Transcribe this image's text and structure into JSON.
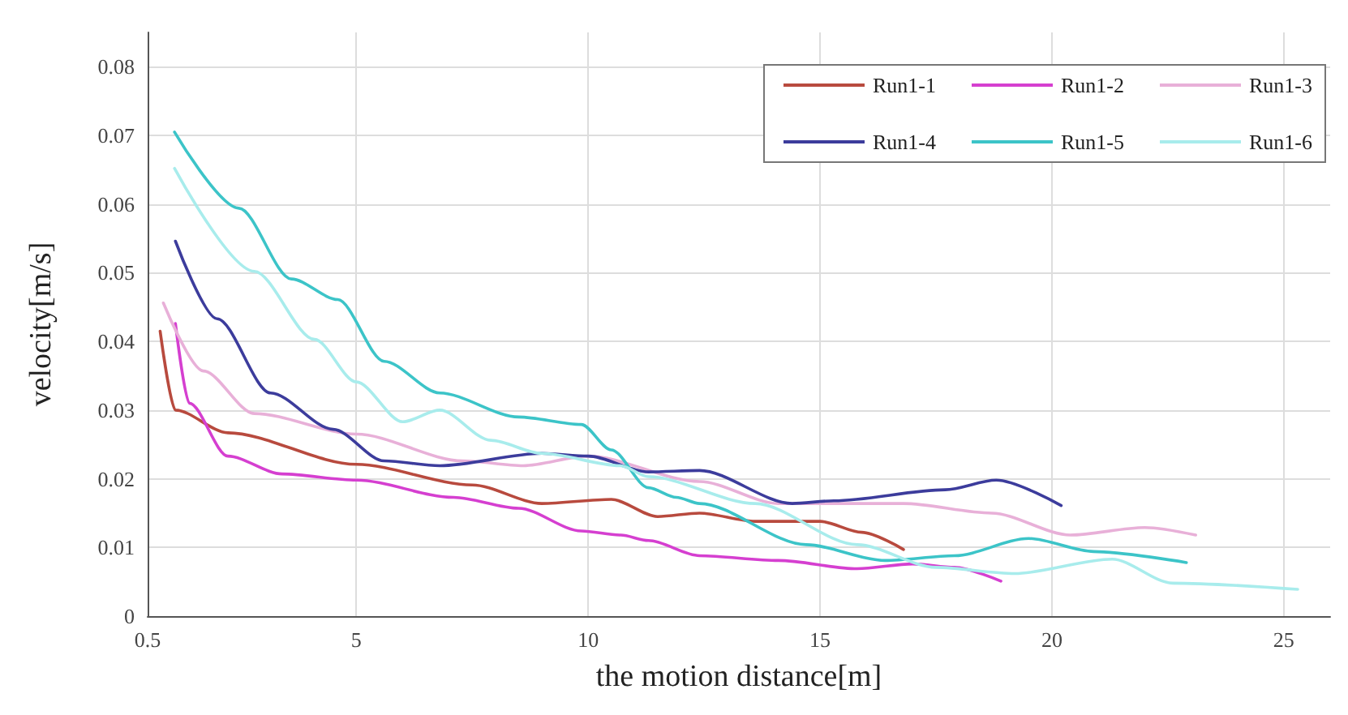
{
  "chart_data": {
    "type": "line",
    "xlabel": "the motion distance[m]",
    "ylabel": "velocity[m/s]",
    "xlim": [
      0.5,
      26
    ],
    "xticks": [
      0.5,
      5,
      10,
      15,
      20,
      25
    ],
    "ylim": [
      0,
      0.085
    ],
    "yticks": [
      0,
      0.01,
      0.02,
      0.03,
      0.04,
      0.05,
      0.06,
      0.07,
      0.08
    ],
    "grid": true,
    "legend": "top right",
    "marker": "none",
    "line_style": "solid",
    "series": [
      {
        "name": "Run1-1",
        "color": "#b84a3e",
        "x": [
          0.77,
          1.1,
          2.23,
          5,
          7.5,
          9,
          10.5,
          11.5,
          12.4,
          13.6,
          15,
          15.9,
          16.8
        ],
        "values": [
          0.0415,
          0.03,
          0.0267,
          0.0221,
          0.0191,
          0.0164,
          0.017,
          0.0145,
          0.015,
          0.0138,
          0.0138,
          0.0122,
          0.0097
        ]
      },
      {
        "name": "Run1-2",
        "color": "#d53fd0",
        "x": [
          1.1,
          1.4,
          2.23,
          3.4,
          5,
          7.1,
          8.5,
          9.85,
          10.7,
          11.3,
          12.4,
          14.1,
          15.8,
          17,
          17.9,
          18.9
        ],
        "values": [
          0.0426,
          0.031,
          0.0233,
          0.0207,
          0.0198,
          0.0173,
          0.0157,
          0.0124,
          0.0118,
          0.011,
          0.0088,
          0.0081,
          0.0069,
          0.0076,
          0.0071,
          0.0051
        ]
      },
      {
        "name": "Run1-3",
        "color": "#e8b0d8",
        "x": [
          0.84,
          1.7,
          2.8,
          5,
          7.3,
          8.6,
          10,
          12.4,
          14.1,
          16.8,
          18.7,
          20.4,
          22,
          23.1
        ],
        "values": [
          0.0456,
          0.0357,
          0.0295,
          0.0265,
          0.0226,
          0.0219,
          0.0233,
          0.0196,
          0.0164,
          0.0164,
          0.015,
          0.0118,
          0.0129,
          0.0118
        ]
      },
      {
        "name": "Run1-4",
        "color": "#3c3c9c",
        "x": [
          1.1,
          2,
          3.15,
          4.5,
          5.6,
          6.8,
          9,
          10,
          11.3,
          12.4,
          14.4,
          15.3,
          17.7,
          18.8,
          20.2
        ],
        "values": [
          0.0546,
          0.0433,
          0.0325,
          0.0272,
          0.0226,
          0.0219,
          0.0237,
          0.0233,
          0.021,
          0.0212,
          0.0164,
          0.0168,
          0.0184,
          0.0198,
          0.0161
        ]
      },
      {
        "name": "Run1-5",
        "color": "#3cc4c8",
        "x": [
          1.08,
          2.47,
          3.6,
          4.6,
          5.6,
          6.8,
          8.5,
          9.85,
          10.5,
          11.3,
          11.9,
          12.4,
          14.7,
          16.4,
          17.9,
          19.5,
          20.9,
          22.9
        ],
        "values": [
          0.0705,
          0.0594,
          0.0491,
          0.0461,
          0.0371,
          0.0325,
          0.029,
          0.0279,
          0.0242,
          0.0187,
          0.0173,
          0.0164,
          0.0104,
          0.0081,
          0.0088,
          0.0113,
          0.0094,
          0.0078
        ]
      },
      {
        "name": "Run1-6",
        "color": "#a8ecec",
        "x": [
          1.08,
          2.8,
          4.1,
          5,
          6,
          6.8,
          7.9,
          9,
          10.7,
          11.3,
          13.6,
          15.8,
          17.5,
          19.2,
          21.3,
          22.6,
          25.3
        ],
        "values": [
          0.0652,
          0.0502,
          0.0403,
          0.0341,
          0.0283,
          0.03,
          0.0256,
          0.0237,
          0.0219,
          0.0203,
          0.0164,
          0.0104,
          0.0071,
          0.0062,
          0.0083,
          0.0048,
          0.0039
        ]
      }
    ]
  }
}
